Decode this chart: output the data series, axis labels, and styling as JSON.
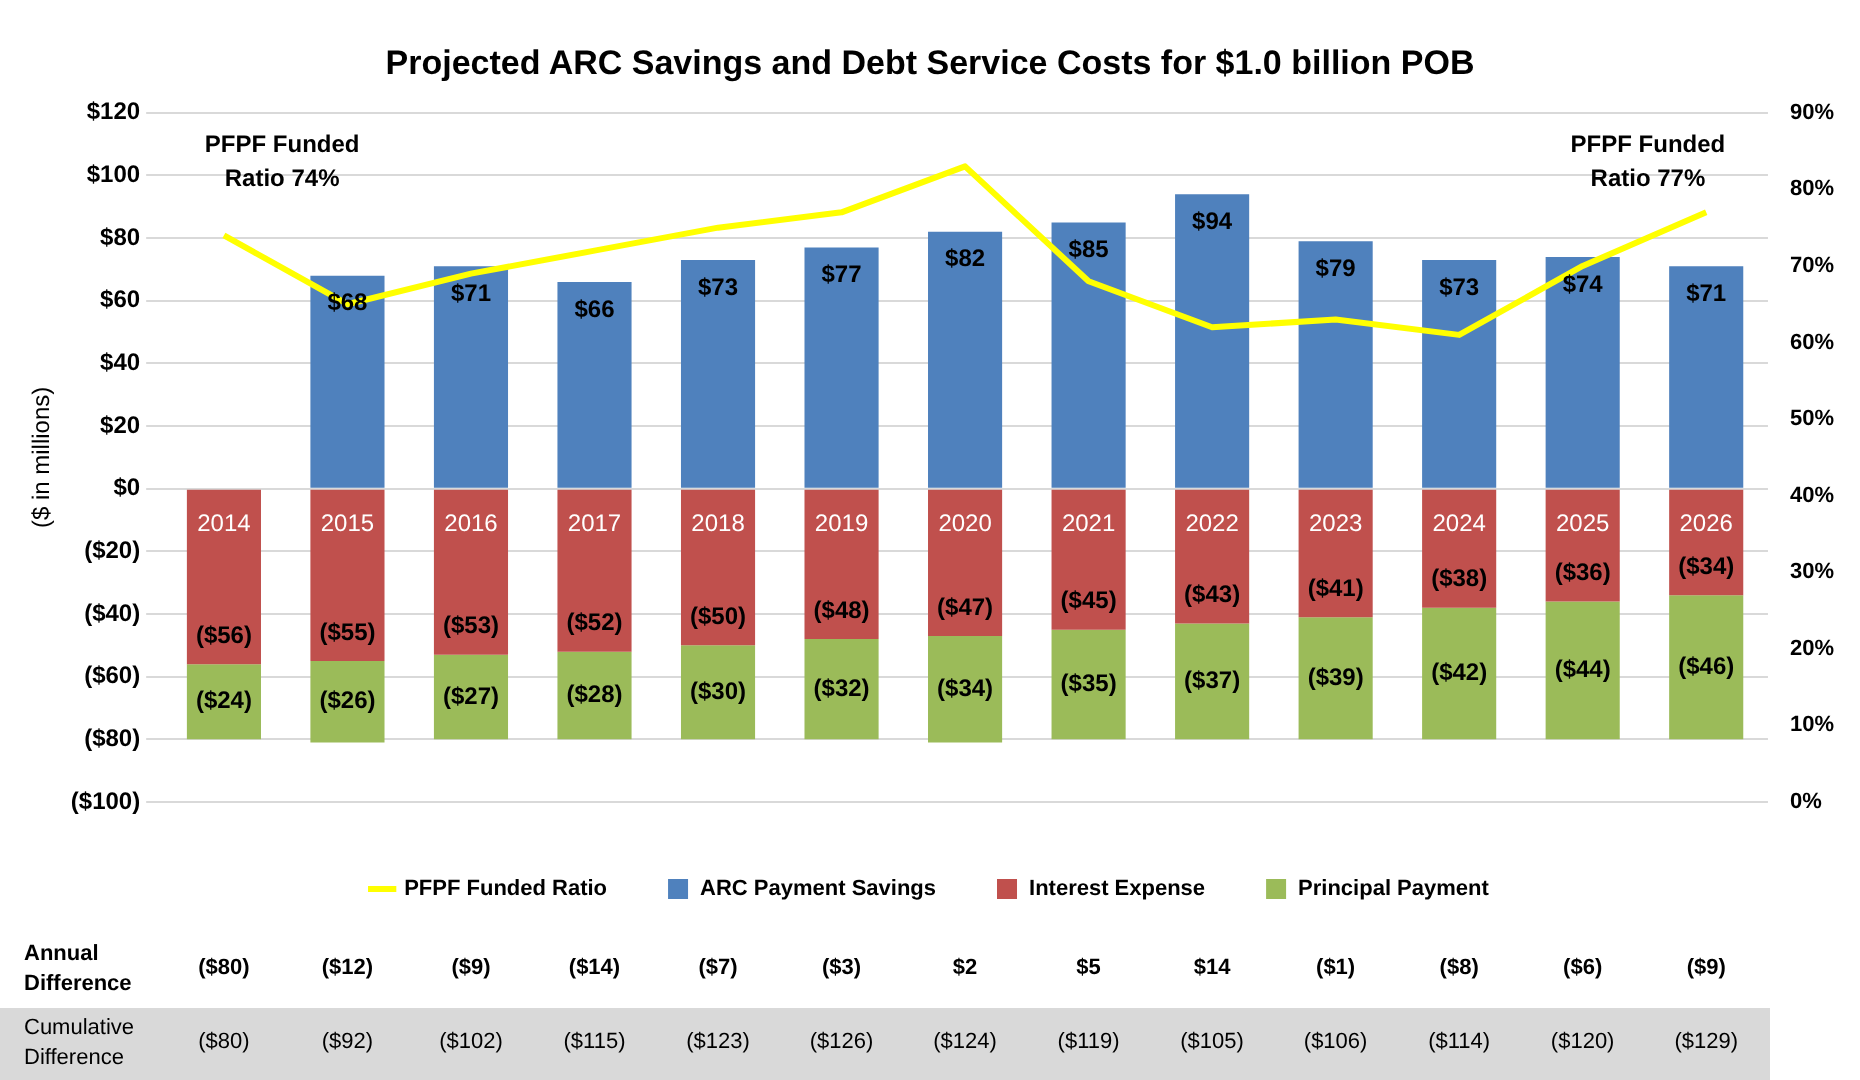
{
  "chart_data": {
    "type": "bar",
    "title": "Projected ARC Savings and Debt Service Costs for $1.0 billion POB",
    "ylabel": "($ in millions)",
    "stacked": true,
    "categories": [
      "2014",
      "2015",
      "2016",
      "2017",
      "2018",
      "2019",
      "2020",
      "2021",
      "2022",
      "2023",
      "2024",
      "2025",
      "2026"
    ],
    "series": [
      {
        "name": "ARC Payment Savings",
        "color": "#4f81bd",
        "values": [
          0,
          68,
          71,
          66,
          73,
          77,
          82,
          85,
          94,
          79,
          73,
          74,
          71
        ],
        "value_labels": [
          null,
          "$68",
          "$71",
          "$66",
          "$73",
          "$77",
          "$82",
          "$85",
          "$94",
          "$79",
          "$73",
          "$74",
          "$71"
        ]
      },
      {
        "name": "Interest Expense",
        "color": "#c0504d",
        "values": [
          -56,
          -55,
          -53,
          -52,
          -50,
          -48,
          -47,
          -45,
          -43,
          -41,
          -38,
          -36,
          -34
        ],
        "value_labels": [
          "($56)",
          "($55)",
          "($53)",
          "($52)",
          "($50)",
          "($48)",
          "($47)",
          "($45)",
          "($43)",
          "($41)",
          "($38)",
          "($36)",
          "($34)"
        ]
      },
      {
        "name": "Principal Payment",
        "color": "#9bbb59",
        "values": [
          -24,
          -26,
          -27,
          -28,
          -30,
          -32,
          -34,
          -35,
          -37,
          -39,
          -42,
          -44,
          -46
        ],
        "value_labels": [
          "($24)",
          "($26)",
          "($27)",
          "($28)",
          "($30)",
          "($32)",
          "($34)",
          "($35)",
          "($37)",
          "($39)",
          "($42)",
          "($44)",
          "($46)"
        ]
      },
      {
        "name": "PFPF Funded Ratio",
        "type": "line",
        "axis": "y2",
        "color": "#ffff00",
        "marker": "none",
        "values": [
          74,
          65,
          69,
          72,
          75,
          77,
          83,
          68,
          62,
          63,
          61,
          70,
          77
        ]
      }
    ],
    "ylim": [
      -100,
      120
    ],
    "yticks": [
      {
        "value": -100,
        "label": "($100)"
      },
      {
        "value": -80,
        "label": "($80)"
      },
      {
        "value": -60,
        "label": "($60)"
      },
      {
        "value": -40,
        "label": "($40)"
      },
      {
        "value": -20,
        "label": "($20)"
      },
      {
        "value": 0,
        "label": "$0"
      },
      {
        "value": 20,
        "label": "$20"
      },
      {
        "value": 40,
        "label": "$40"
      },
      {
        "value": 60,
        "label": "$60"
      },
      {
        "value": 80,
        "label": "$80"
      },
      {
        "value": 100,
        "label": "$100"
      },
      {
        "value": 120,
        "label": "$120"
      }
    ],
    "y2lim": [
      0,
      90
    ],
    "y2ticks": [
      {
        "value": 0,
        "label": "0%"
      },
      {
        "value": 10,
        "label": "10%"
      },
      {
        "value": 20,
        "label": "20%"
      },
      {
        "value": 30,
        "label": "30%"
      },
      {
        "value": 40,
        "label": "40%"
      },
      {
        "value": 50,
        "label": "50%"
      },
      {
        "value": 60,
        "label": "60%"
      },
      {
        "value": 70,
        "label": "70%"
      },
      {
        "value": 80,
        "label": "80%"
      },
      {
        "value": 90,
        "label": "90%"
      }
    ],
    "grid": "y",
    "legend": "bottom",
    "annotations": [
      "PFPF Funded Ratio 74%",
      "PFPF Funded Ratio 77%",
      "Annual Difference",
      "($80)",
      "($12)",
      "($9)",
      "($14)",
      "($7)",
      "($3)",
      "$2",
      "$5",
      "$14",
      "($1)",
      "($8)",
      "($6)",
      "($9)",
      "Cumulative Difference",
      "($80)",
      "($92)",
      "($102)",
      "($115)",
      "($123)",
      "($126)",
      "($124)",
      "($119)",
      "($105)",
      "($106)",
      "($114)",
      "($120)",
      "($129)"
    ]
  }
}
